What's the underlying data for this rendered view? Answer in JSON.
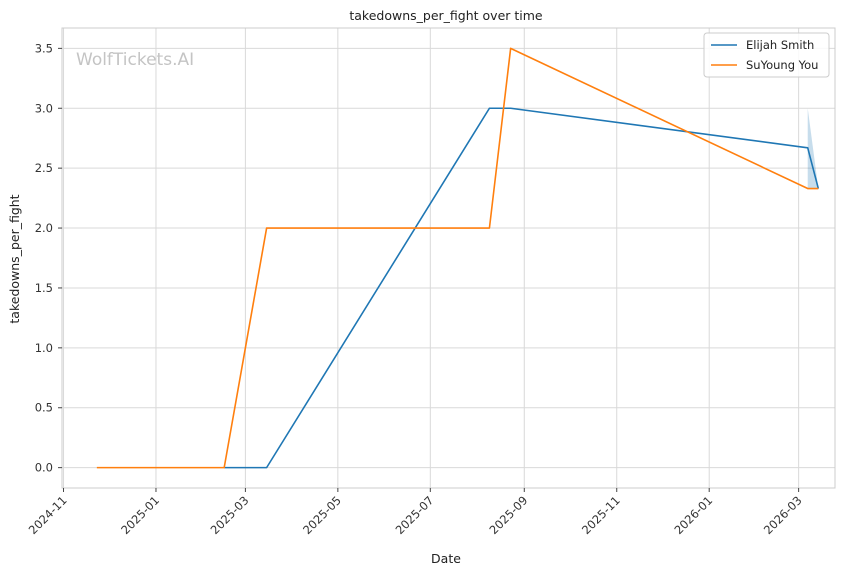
{
  "chart_data": {
    "type": "line",
    "title": "takedowns_per_fight over time",
    "xlabel": "Date",
    "ylabel": "takedowns_per_fight",
    "watermark": "WolfTickets.AI",
    "x_ticks": [
      "2024-11",
      "2025-01",
      "2025-03",
      "2025-05",
      "2025-07",
      "2025-09",
      "2025-11",
      "2026-01",
      "2026-03"
    ],
    "y_ticks": [
      "0.0",
      "0.5",
      "1.0",
      "1.5",
      "2.0",
      "2.5",
      "3.0",
      "3.5"
    ],
    "xlim": [
      "2024-10-31",
      "2026-03-25"
    ],
    "ylim": [
      -0.17,
      3.67
    ],
    "grid": true,
    "legend_position": "top-right",
    "series": [
      {
        "name": "Elijah Smith",
        "color": "#1f77b4",
        "points": [
          {
            "x": "2025-02-15",
            "y": 0.0
          },
          {
            "x": "2025-03-15",
            "y": 0.0
          },
          {
            "x": "2025-08-09",
            "y": 3.0
          },
          {
            "x": "2025-08-23",
            "y": 3.0
          },
          {
            "x": "2026-03-07",
            "y": 2.67
          },
          {
            "x": "2026-03-14",
            "y": 2.33
          }
        ],
        "band": [
          {
            "x": "2026-03-07",
            "low": 2.33,
            "high": 3.0
          },
          {
            "x": "2026-03-14",
            "low": 2.33,
            "high": 2.33
          }
        ]
      },
      {
        "name": "SuYoung You",
        "color": "#ff7f0e",
        "points": [
          {
            "x": "2024-11-23",
            "y": 0.0
          },
          {
            "x": "2025-02-15",
            "y": 0.0
          },
          {
            "x": "2025-03-15",
            "y": 2.0
          },
          {
            "x": "2025-08-09",
            "y": 2.0
          },
          {
            "x": "2025-08-23",
            "y": 3.5
          },
          {
            "x": "2026-03-07",
            "y": 2.33
          },
          {
            "x": "2026-03-14",
            "y": 2.33
          }
        ]
      }
    ]
  }
}
